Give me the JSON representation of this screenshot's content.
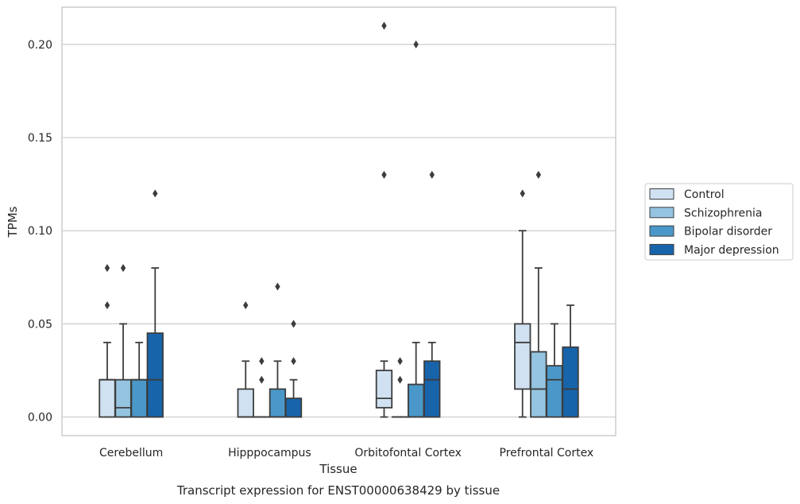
{
  "chart_data": {
    "type": "box",
    "xlabel": "Tissue",
    "ylabel": "TPMs",
    "caption": "Transcript expression for ENST00000638429 by tissue",
    "ylim": [
      -0.01,
      0.22
    ],
    "yticks": [
      "0.00",
      "0.05",
      "0.10",
      "0.15",
      "0.20"
    ],
    "grid": "horizontal",
    "legend_position": "right",
    "categories": [
      "Cerebellum",
      "Hipppocampus",
      "Orbitofontal Cortex",
      "Prefrontal Cortex"
    ],
    "series": [
      {
        "name": "Control",
        "color": "#d0e1f2",
        "boxes": [
          {
            "q1": 0.0,
            "median": 0.02,
            "q3": 0.02,
            "whislo": 0.0,
            "whishi": 0.04,
            "fliers": [
              0.06,
              0.08
            ]
          },
          {
            "q1": 0.0,
            "median": 0.0,
            "q3": 0.015,
            "whislo": 0.0,
            "whishi": 0.03,
            "fliers": [
              0.06
            ]
          },
          {
            "q1": 0.005,
            "median": 0.01,
            "q3": 0.025,
            "whislo": 0.0,
            "whishi": 0.03,
            "fliers": [
              0.13,
              0.21
            ]
          },
          {
            "q1": 0.015,
            "median": 0.04,
            "q3": 0.05,
            "whislo": 0.0,
            "whishi": 0.1,
            "fliers": [
              0.12
            ]
          }
        ]
      },
      {
        "name": "Schizophrenia",
        "color": "#94c4df",
        "boxes": [
          {
            "q1": 0.0,
            "median": 0.005,
            "q3": 0.02,
            "whislo": 0.0,
            "whishi": 0.05,
            "fliers": [
              0.08
            ]
          },
          {
            "q1": 0.0,
            "median": 0.0,
            "q3": 0.0,
            "whislo": 0.0,
            "whishi": 0.0,
            "fliers": [
              0.02,
              0.03
            ]
          },
          {
            "q1": 0.0,
            "median": 0.0,
            "q3": 0.0,
            "whislo": 0.0,
            "whishi": 0.0,
            "fliers": [
              0.02,
              0.03
            ]
          },
          {
            "q1": 0.0,
            "median": 0.015,
            "q3": 0.035,
            "whislo": 0.0,
            "whishi": 0.08,
            "fliers": [
              0.13
            ]
          }
        ]
      },
      {
        "name": "Bipolar disorder",
        "color": "#4a98c9",
        "boxes": [
          {
            "q1": 0.0,
            "median": 0.02,
            "q3": 0.02,
            "whislo": 0.0,
            "whishi": 0.04,
            "fliers": []
          },
          {
            "q1": 0.0,
            "median": 0.0,
            "q3": 0.015,
            "whislo": 0.0,
            "whishi": 0.03,
            "fliers": [
              0.07
            ]
          },
          {
            "q1": 0.0,
            "median": 0.0,
            "q3": 0.0175,
            "whislo": 0.0,
            "whishi": 0.04,
            "fliers": [
              0.2
            ]
          },
          {
            "q1": 0.0,
            "median": 0.02,
            "q3": 0.0275,
            "whislo": 0.0,
            "whishi": 0.05,
            "fliers": []
          }
        ]
      },
      {
        "name": "Major depression",
        "color": "#1764ab",
        "boxes": [
          {
            "q1": 0.0,
            "median": 0.02,
            "q3": 0.045,
            "whislo": 0.0,
            "whishi": 0.08,
            "fliers": [
              0.12
            ]
          },
          {
            "q1": 0.0,
            "median": 0.0,
            "q3": 0.01,
            "whislo": 0.0,
            "whishi": 0.02,
            "fliers": [
              0.03,
              0.05
            ]
          },
          {
            "q1": 0.0,
            "median": 0.02,
            "q3": 0.03,
            "whislo": 0.0,
            "whishi": 0.04,
            "fliers": [
              0.13
            ]
          },
          {
            "q1": 0.0,
            "median": 0.015,
            "q3": 0.0375,
            "whislo": 0.0,
            "whishi": 0.06,
            "fliers": []
          }
        ]
      }
    ]
  }
}
